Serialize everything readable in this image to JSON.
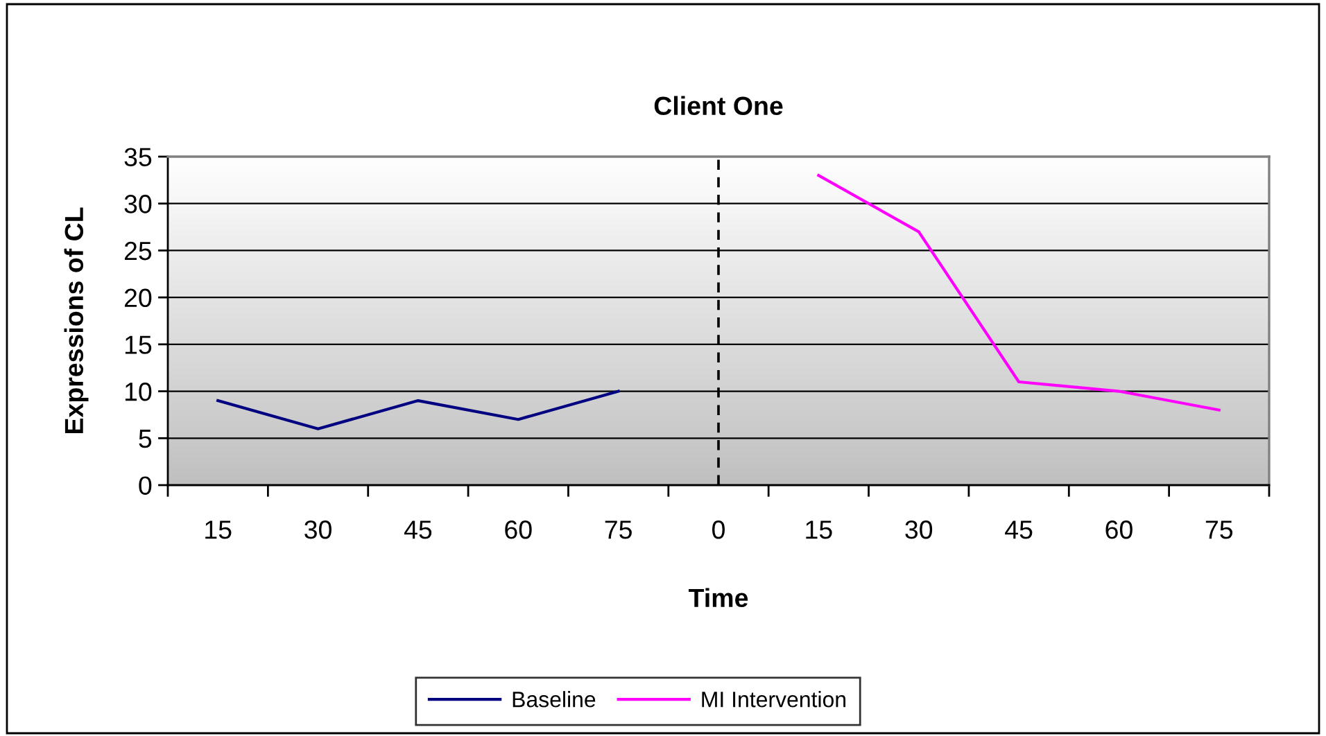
{
  "chart_data": {
    "type": "line",
    "title": "Client One",
    "xlabel": "Time",
    "ylabel": "Expressions of CL",
    "categories": [
      "15",
      "30",
      "45",
      "60",
      "75",
      "0",
      "15",
      "30",
      "45",
      "60",
      "75"
    ],
    "series": [
      {
        "name": "Baseline",
        "color": "#000080",
        "values": [
          9,
          6,
          9,
          7,
          10,
          null,
          null,
          null,
          null,
          null,
          null
        ]
      },
      {
        "name": "MI Intervention",
        "color": "#ff00ff",
        "values": [
          null,
          null,
          null,
          null,
          null,
          null,
          33,
          27,
          11,
          10,
          8
        ]
      }
    ],
    "ylim": [
      0,
      35
    ],
    "yticks": [
      0,
      5,
      10,
      15,
      20,
      25,
      30,
      35
    ],
    "grid": "y",
    "legend": "bottom",
    "marker": "none",
    "line_style": "solid",
    "ref_lines": [
      {
        "axis": "x",
        "value": "0",
        "color": "#000000",
        "line_style": "dashed"
      }
    ]
  }
}
